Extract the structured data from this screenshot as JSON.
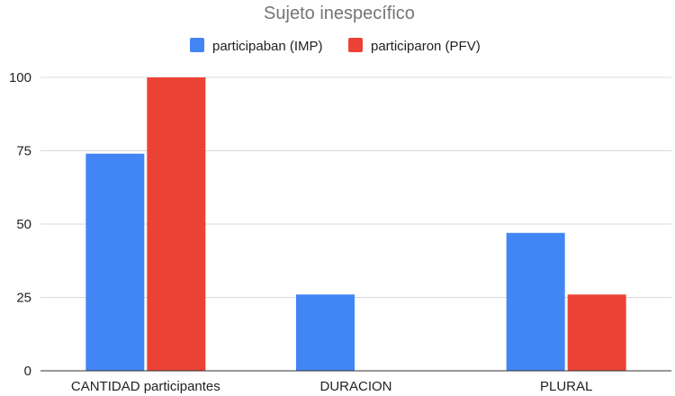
{
  "chart_data": {
    "type": "bar",
    "title": "Sujeto inespecífico",
    "categories": [
      "CANTIDAD participantes",
      "DURACION",
      "PLURAL"
    ],
    "series": [
      {
        "name": "participaban (IMP)",
        "color": "#4285f4",
        "values": [
          74,
          26,
          47
        ]
      },
      {
        "name": "participaron (PFV)",
        "color": "#ea4335",
        "values": [
          100,
          0,
          26
        ]
      }
    ],
    "ylim": [
      0,
      100
    ],
    "yticks": [
      0,
      25,
      50,
      75,
      100
    ],
    "grid": true,
    "legend": "top"
  }
}
